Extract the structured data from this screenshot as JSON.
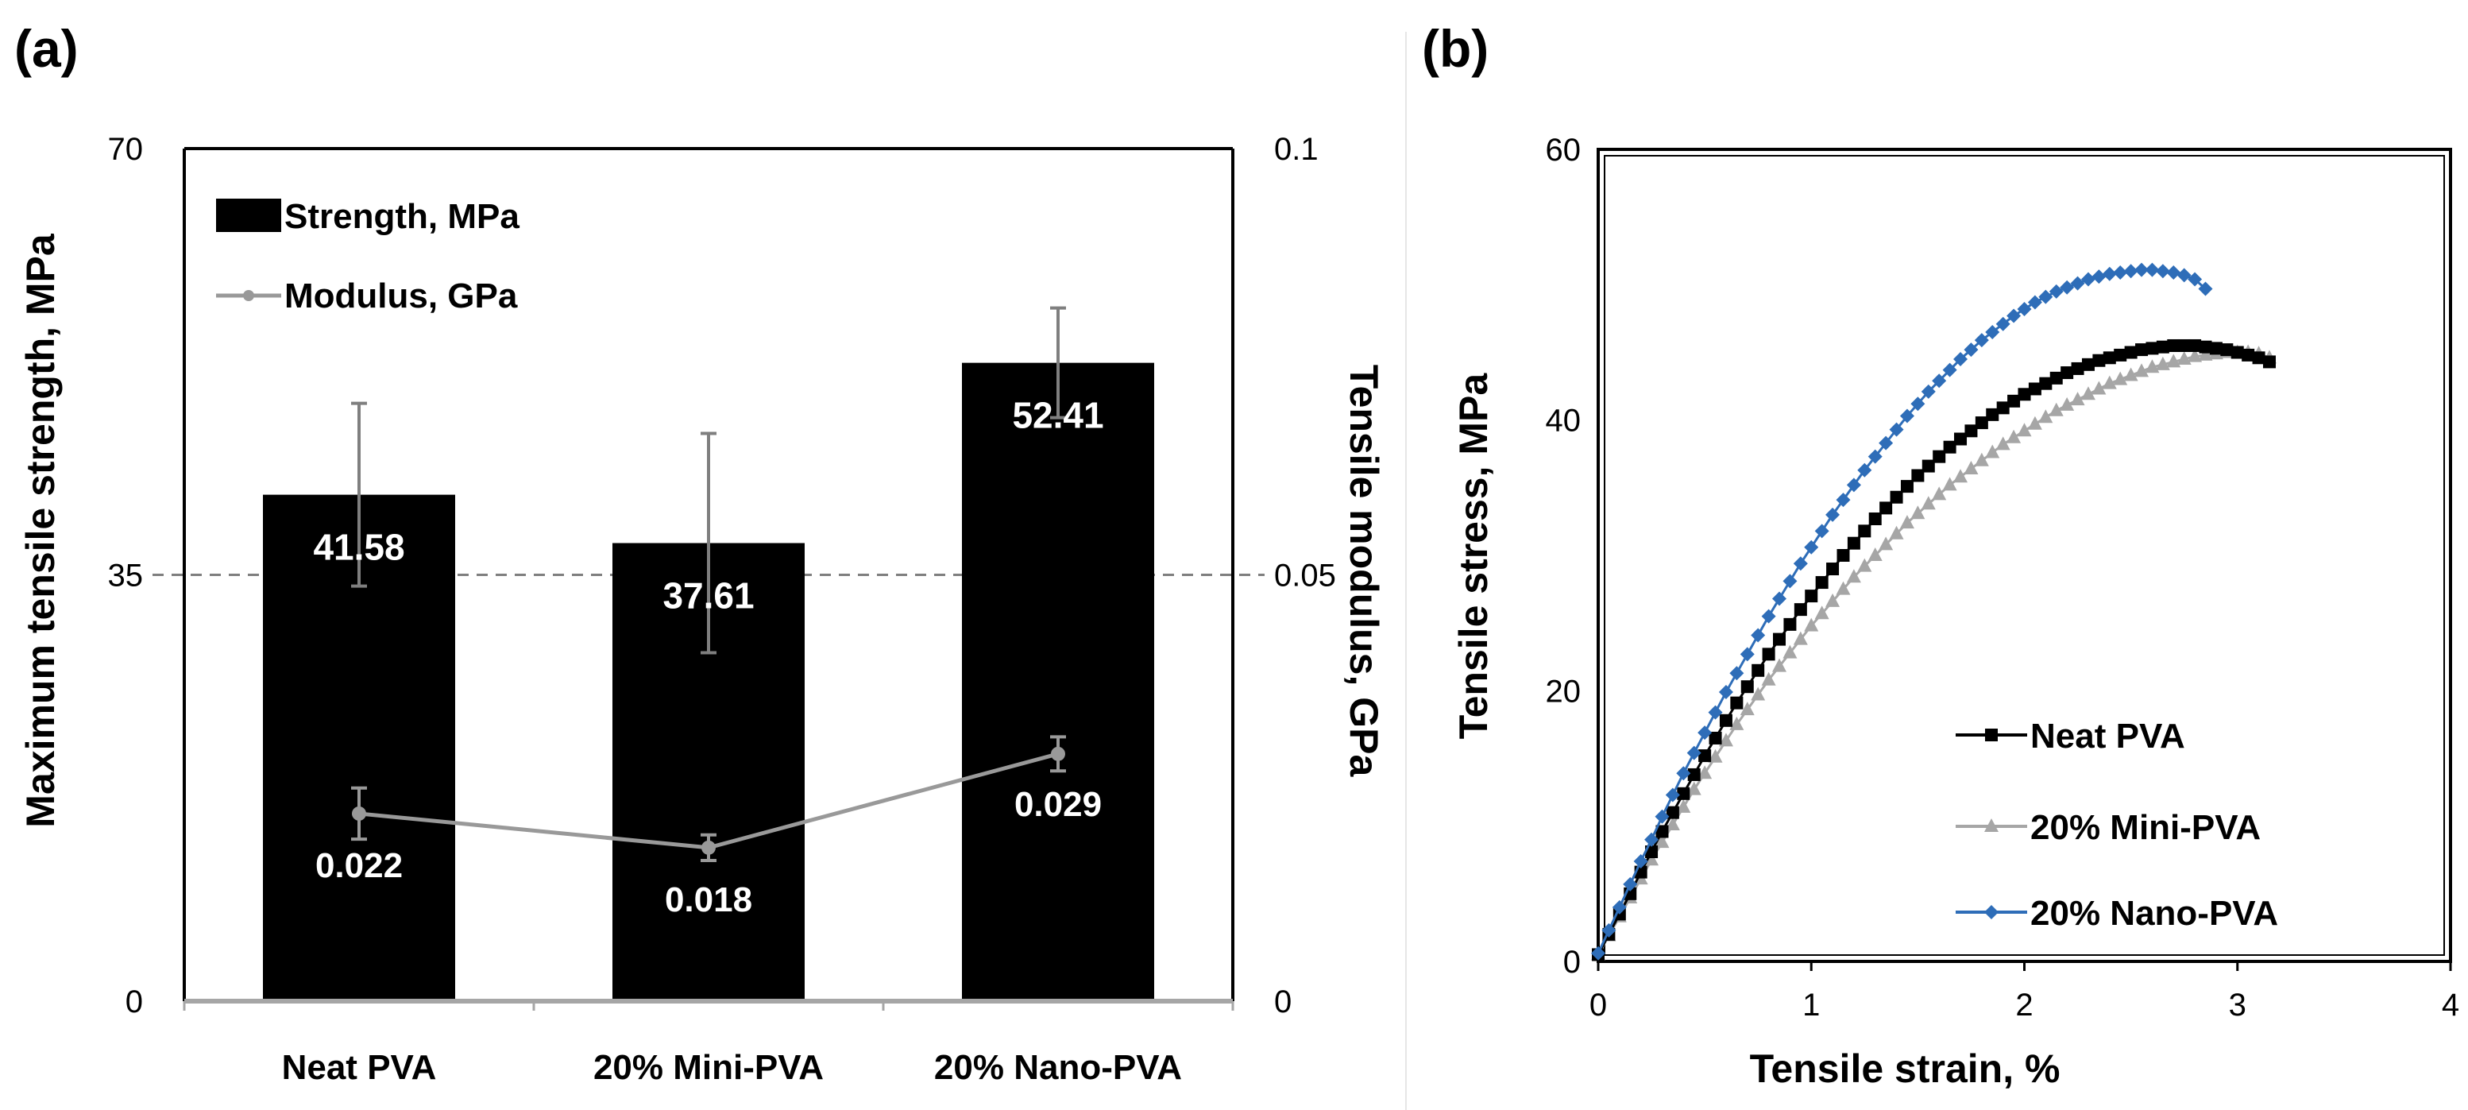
{
  "chart_data": [
    {
      "type": "bar",
      "panel": "(a)",
      "categories": [
        "Neat PVA",
        "20% Mini-PVA",
        "20% Nano-PVA"
      ],
      "series": [
        {
          "name": "Strength, MPa",
          "axis": "left",
          "values": [
            41.58,
            37.61,
            52.41
          ],
          "value_labels": [
            "41.58",
            "37.61",
            "52.41"
          ],
          "error": [
            7.5,
            9.0,
            4.5
          ],
          "color": "#000000"
        },
        {
          "name": "Modulus, GPa",
          "type": "line",
          "axis": "right",
          "values": [
            0.022,
            0.018,
            0.029
          ],
          "value_labels": [
            "0.022",
            "0.018",
            "0.029"
          ],
          "error": [
            0.003,
            0.0015,
            0.002
          ],
          "color": "#999999"
        }
      ],
      "ylabel": "Maximum tensile strength, MPa",
      "ylim": [
        0,
        70
      ],
      "yticks": [
        "0",
        "35",
        "70"
      ],
      "y2label": "Tensile modulus, GPa",
      "y2lim": [
        0,
        0.1
      ],
      "y2ticks": [
        "0",
        "0.05",
        "0.1"
      ],
      "reference_line": 35,
      "legend": [
        "Strength, MPa",
        "Modulus, GPa"
      ],
      "legend_position": "top-left"
    },
    {
      "type": "scatter",
      "panel": "(b)",
      "xlabel": "Tensile strain, %",
      "ylabel": "Tensile stress, MPa",
      "xlim": [
        0,
        4
      ],
      "ylim": [
        0,
        60
      ],
      "xticks": [
        "0",
        "1",
        "2",
        "3",
        "4"
      ],
      "yticks": [
        "0",
        "20",
        "40",
        "60"
      ],
      "legend": [
        "Neat PVA",
        "20% Mini-PVA",
        "20% Nano-PVA"
      ],
      "legend_position": "bottom-right",
      "series": [
        {
          "name": "Neat PVA",
          "marker": "square",
          "color": "#000000",
          "x": [
            0.0,
            0.05,
            0.1,
            0.15,
            0.2,
            0.25,
            0.3,
            0.35,
            0.4,
            0.45,
            0.5,
            0.55,
            0.6,
            0.65,
            0.7,
            0.75,
            0.8,
            0.85,
            0.9,
            0.95,
            1.0,
            1.05,
            1.1,
            1.15,
            1.2,
            1.25,
            1.3,
            1.35,
            1.4,
            1.45,
            1.5,
            1.55,
            1.6,
            1.65,
            1.7,
            1.75,
            1.8,
            1.85,
            1.9,
            1.95,
            2.0,
            2.05,
            2.1,
            2.15,
            2.2,
            2.25,
            2.3,
            2.35,
            2.4,
            2.45,
            2.5,
            2.55,
            2.6,
            2.65,
            2.7,
            2.75,
            2.8,
            2.85,
            2.9,
            2.95,
            3.0,
            3.05,
            3.1,
            3.15
          ],
          "y": [
            0.5,
            2.0,
            3.5,
            5.0,
            6.6,
            8.1,
            9.6,
            11.0,
            12.4,
            13.8,
            15.2,
            16.5,
            17.8,
            19.1,
            20.3,
            21.5,
            22.7,
            23.8,
            24.9,
            26.0,
            27.0,
            28.0,
            29.0,
            30.0,
            30.9,
            31.8,
            32.7,
            33.5,
            34.3,
            35.1,
            35.9,
            36.6,
            37.3,
            38.0,
            38.6,
            39.2,
            39.8,
            40.4,
            40.9,
            41.4,
            41.9,
            42.3,
            42.7,
            43.1,
            43.5,
            43.8,
            44.1,
            44.4,
            44.6,
            44.8,
            45.0,
            45.2,
            45.3,
            45.4,
            45.5,
            45.5,
            45.5,
            45.4,
            45.3,
            45.2,
            45.0,
            44.8,
            44.6,
            44.3
          ]
        },
        {
          "name": "20% Mini-PVA",
          "marker": "triangle",
          "color": "#a6a6a6",
          "x": [
            0.0,
            0.05,
            0.1,
            0.15,
            0.2,
            0.25,
            0.3,
            0.35,
            0.4,
            0.45,
            0.5,
            0.55,
            0.6,
            0.65,
            0.7,
            0.75,
            0.8,
            0.85,
            0.9,
            0.95,
            1.0,
            1.05,
            1.1,
            1.15,
            1.2,
            1.25,
            1.3,
            1.35,
            1.4,
            1.45,
            1.5,
            1.55,
            1.6,
            1.65,
            1.7,
            1.75,
            1.8,
            1.85,
            1.9,
            1.95,
            2.0,
            2.05,
            2.1,
            2.15,
            2.2,
            2.25,
            2.3,
            2.35,
            2.4,
            2.45,
            2.5,
            2.55,
            2.6,
            2.65,
            2.7,
            2.75,
            2.8,
            2.85,
            2.9,
            2.95,
            3.0,
            3.05,
            3.1,
            3.15
          ],
          "y": [
            0.5,
            1.9,
            3.3,
            4.7,
            6.1,
            7.5,
            8.8,
            10.1,
            11.4,
            12.7,
            13.9,
            15.1,
            16.3,
            17.5,
            18.6,
            19.7,
            20.8,
            21.8,
            22.8,
            23.8,
            24.8,
            25.7,
            26.6,
            27.5,
            28.4,
            29.2,
            30.0,
            30.8,
            31.6,
            32.4,
            33.1,
            33.8,
            34.5,
            35.2,
            35.8,
            36.4,
            37.0,
            37.6,
            38.2,
            38.7,
            39.2,
            39.7,
            40.2,
            40.7,
            41.1,
            41.5,
            41.9,
            42.3,
            42.7,
            43.0,
            43.3,
            43.6,
            43.9,
            44.1,
            44.3,
            44.5,
            44.7,
            44.8,
            44.9,
            45.0,
            45.0,
            45.0,
            44.9,
            44.6
          ]
        },
        {
          "name": "20% Nano-PVA",
          "marker": "diamond",
          "color": "#2e6db8",
          "x": [
            0.0,
            0.05,
            0.1,
            0.15,
            0.2,
            0.25,
            0.3,
            0.35,
            0.4,
            0.45,
            0.5,
            0.55,
            0.6,
            0.65,
            0.7,
            0.75,
            0.8,
            0.85,
            0.9,
            0.95,
            1.0,
            1.05,
            1.1,
            1.15,
            1.2,
            1.25,
            1.3,
            1.35,
            1.4,
            1.45,
            1.5,
            1.55,
            1.6,
            1.65,
            1.7,
            1.75,
            1.8,
            1.85,
            1.9,
            1.95,
            2.0,
            2.05,
            2.1,
            2.15,
            2.2,
            2.25,
            2.3,
            2.35,
            2.4,
            2.45,
            2.5,
            2.55,
            2.6,
            2.65,
            2.7,
            2.75,
            2.8,
            2.85
          ],
          "y": [
            0.6,
            2.3,
            4.0,
            5.7,
            7.4,
            9.0,
            10.7,
            12.3,
            13.9,
            15.4,
            16.9,
            18.4,
            19.9,
            21.3,
            22.7,
            24.1,
            25.5,
            26.8,
            28.1,
            29.4,
            30.6,
            31.8,
            33.0,
            34.1,
            35.2,
            36.3,
            37.3,
            38.3,
            39.3,
            40.3,
            41.2,
            42.1,
            42.9,
            43.7,
            44.5,
            45.2,
            45.9,
            46.5,
            47.1,
            47.7,
            48.2,
            48.7,
            49.1,
            49.5,
            49.8,
            50.1,
            50.4,
            50.6,
            50.8,
            50.9,
            51.0,
            51.1,
            51.1,
            51.0,
            50.9,
            50.7,
            50.4,
            49.7
          ]
        }
      ]
    }
  ]
}
